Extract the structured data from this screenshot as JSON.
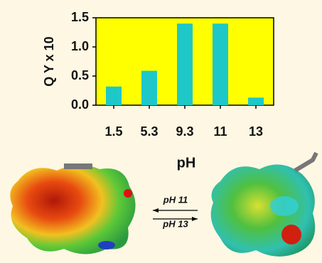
{
  "chart_data": {
    "type": "bar",
    "y_label": "Q Y x 10",
    "x_label": "pH",
    "categories": [
      "1.5",
      "5.3",
      "9.3",
      "11",
      "13"
    ],
    "values": [
      0.32,
      0.59,
      1.4,
      1.4,
      0.13
    ],
    "color": "#1ec8c8",
    "plot_background": "#ffff00",
    "ylim": [
      0,
      1.5
    ],
    "yticks": [
      {
        "value": 0,
        "label": "0.0"
      },
      0.5,
      {
        "value": 1,
        "label": "1.0"
      },
      1.5
    ],
    "annotations": [
      "pH 11",
      "pH 13"
    ]
  }
}
